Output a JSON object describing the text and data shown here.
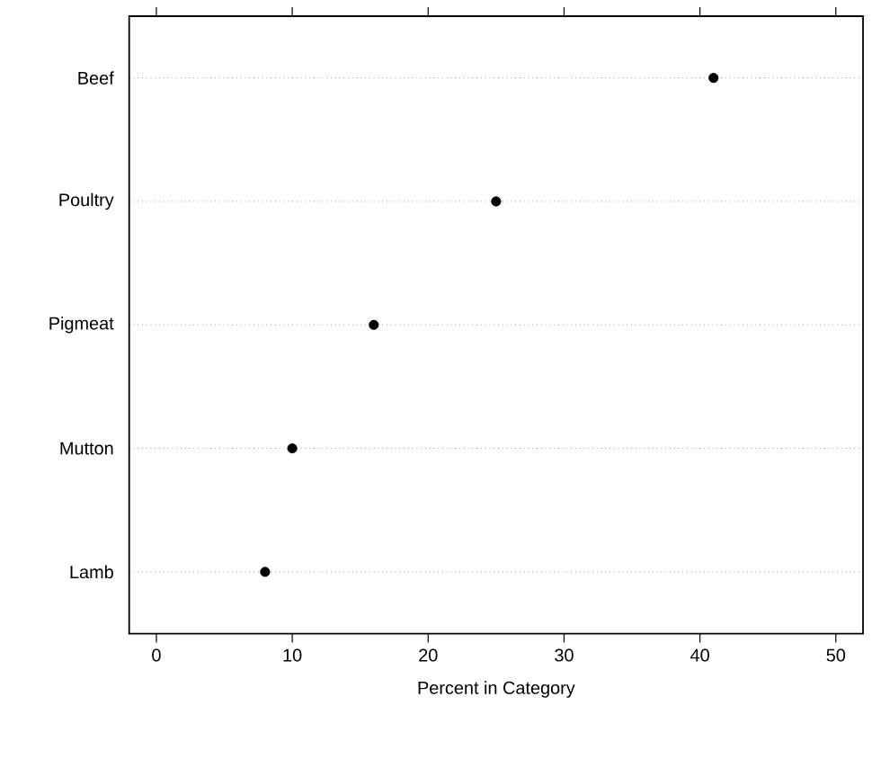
{
  "chart_data": {
    "type": "scatter",
    "orientation": "horizontal",
    "xlabel": "Percent in Category",
    "categories": [
      "Beef",
      "Poultry",
      "Pigmeat",
      "Mutton",
      "Lamb"
    ],
    "values": [
      41,
      25,
      16,
      10,
      8
    ],
    "color": "#000000",
    "marker": "circle",
    "xlim": [
      -2,
      52
    ],
    "xticks": [
      0,
      10,
      20,
      30,
      40,
      50
    ],
    "grid": "y"
  }
}
